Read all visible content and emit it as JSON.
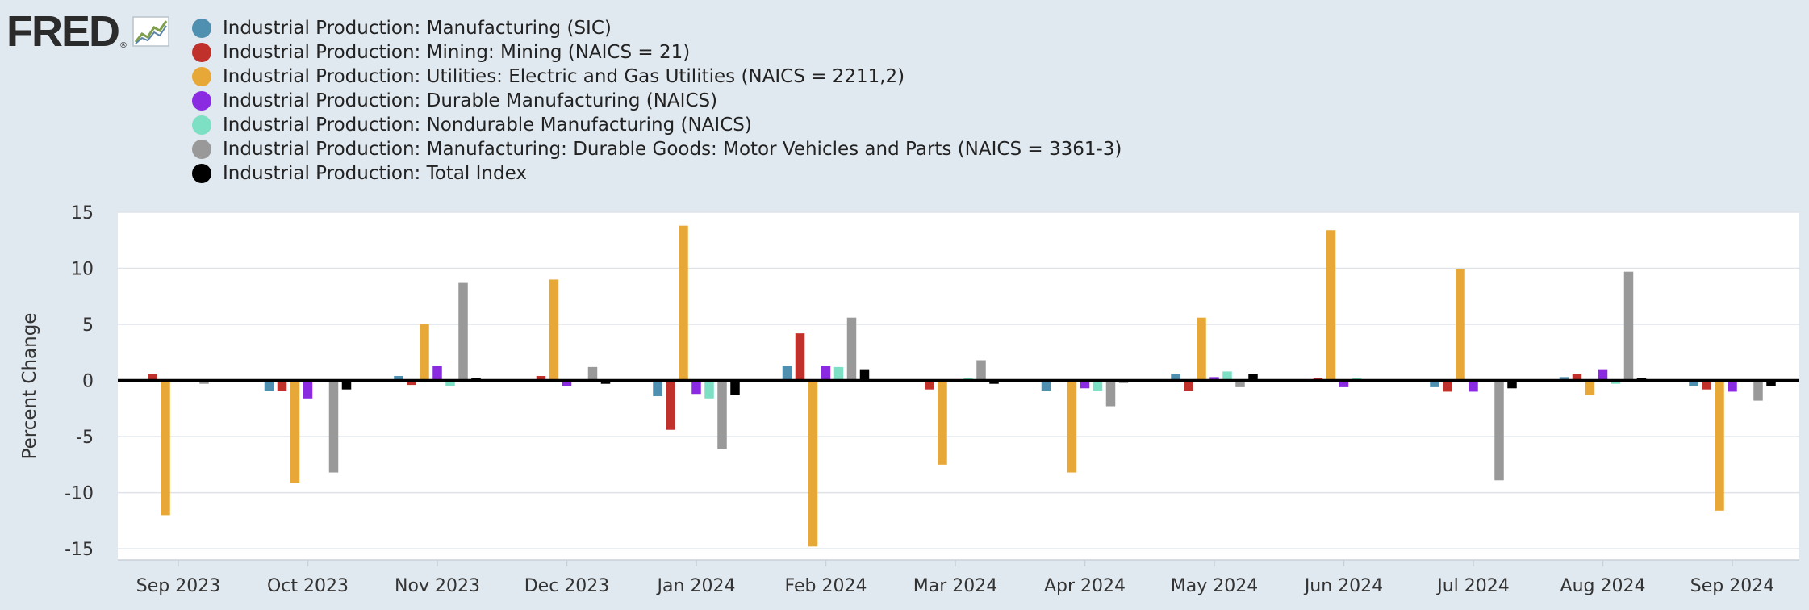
{
  "logo": {
    "text": "FRED",
    "reg": "®",
    "name": "fred-logo"
  },
  "chart_data": {
    "type": "bar",
    "title": "",
    "xlabel": "",
    "ylabel": "Percent Change",
    "ylim": [
      -16,
      15
    ],
    "yticks": [
      15,
      10,
      5,
      0,
      -5,
      -10,
      -15
    ],
    "grid": true,
    "legend_position": "top-left",
    "categories": [
      "Sep 2023",
      "Oct 2023",
      "Nov 2023",
      "Dec 2023",
      "Jan 2024",
      "Feb 2024",
      "Mar 2024",
      "Apr 2024",
      "May 2024",
      "Jun 2024",
      "Jul 2024",
      "Aug 2024",
      "Sep 2024"
    ],
    "series": [
      {
        "name": "Industrial Production: Manufacturing (SIC)",
        "color": "#4f8fb0",
        "values": [
          0.0,
          -0.9,
          0.4,
          0.0,
          -1.4,
          1.3,
          0.0,
          -0.9,
          0.6,
          0.0,
          -0.6,
          0.3,
          -0.5
        ]
      },
      {
        "name": "Industrial Production: Mining: Mining (NAICS = 21)",
        "color": "#c1312c",
        "values": [
          0.6,
          -0.9,
          -0.4,
          0.4,
          -4.4,
          4.2,
          -0.8,
          0.0,
          -0.9,
          0.2,
          -1.0,
          0.6,
          -0.8
        ]
      },
      {
        "name": "Industrial Production: Utilities: Electric and Gas Utilities (NAICS = 2211,2)",
        "color": "#e8a838",
        "values": [
          -12.0,
          -9.1,
          5.0,
          9.0,
          13.8,
          -14.8,
          -7.5,
          -8.2,
          5.6,
          13.4,
          9.9,
          -1.3,
          -11.6
        ]
      },
      {
        "name": "Industrial Production: Durable Manufacturing (NAICS)",
        "color": "#8a2be2",
        "values": [
          0.0,
          -1.6,
          1.3,
          -0.5,
          -1.2,
          1.3,
          0.0,
          -0.7,
          0.3,
          -0.6,
          -1.0,
          1.0,
          -1.0
        ]
      },
      {
        "name": "Industrial Production: Nondurable Manufacturing (NAICS)",
        "color": "#7ddfc3",
        "values": [
          0.0,
          0.0,
          -0.5,
          0.1,
          -1.6,
          1.2,
          0.2,
          -0.9,
          0.8,
          0.2,
          0.0,
          -0.3,
          0.0
        ]
      },
      {
        "name": "Industrial Production: Manufacturing: Durable Goods: Motor Vehicles and Parts (NAICS = 3361-3)",
        "color": "#999999",
        "values": [
          -0.3,
          -8.2,
          8.7,
          1.2,
          -6.1,
          5.6,
          1.8,
          -2.3,
          -0.6,
          0.0,
          -8.9,
          9.7,
          -1.8
        ]
      },
      {
        "name": "Industrial Production: Total Index",
        "color": "#000000",
        "values": [
          0.0,
          -0.8,
          0.2,
          -0.3,
          -1.3,
          1.0,
          -0.3,
          -0.2,
          0.6,
          0.0,
          -0.7,
          0.2,
          -0.5
        ]
      }
    ]
  }
}
